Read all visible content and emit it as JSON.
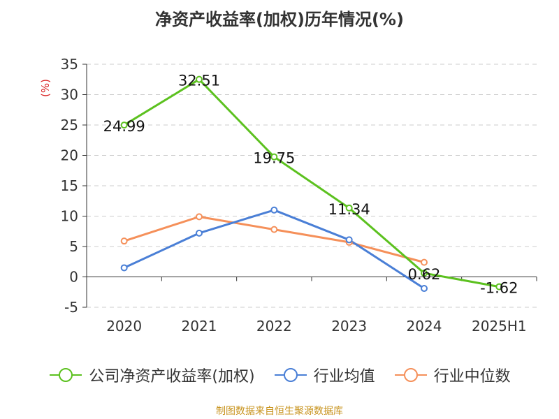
{
  "chart_data": {
    "type": "line",
    "title": "净资产收益率(加权)历年情况(%)",
    "ylabel": "(%)",
    "xlabel": "",
    "categories": [
      "2020",
      "2021",
      "2022",
      "2023",
      "2024",
      "2025H1"
    ],
    "ylim": [
      -5,
      35
    ],
    "yticks": [
      35,
      30,
      25,
      20,
      15,
      10,
      5,
      0,
      -5
    ],
    "ytick_labels": [
      "35",
      "30",
      "25",
      "20",
      "15",
      "10",
      "5",
      "0",
      "-5"
    ],
    "grid": true,
    "legend_position": "bottom",
    "series": [
      {
        "name": "公司净资产收益率(加权)",
        "color": "#5cc11f",
        "values": [
          24.99,
          32.51,
          19.75,
          11.34,
          0.62,
          -1.62
        ],
        "value_labels": [
          "24.99",
          "32.51",
          "19.75",
          "11.34",
          "0.62",
          "-1.62"
        ]
      },
      {
        "name": "行业均值",
        "color": "#4a7fd6",
        "values": [
          1.5,
          7.2,
          11.0,
          6.1,
          -1.9,
          null
        ],
        "value_labels": []
      },
      {
        "name": "行业中位数",
        "color": "#f5905a",
        "values": [
          5.9,
          9.9,
          7.8,
          5.7,
          2.4,
          null
        ],
        "value_labels": []
      }
    ]
  },
  "source_note": "制图数据来自恒生聚源数据库"
}
